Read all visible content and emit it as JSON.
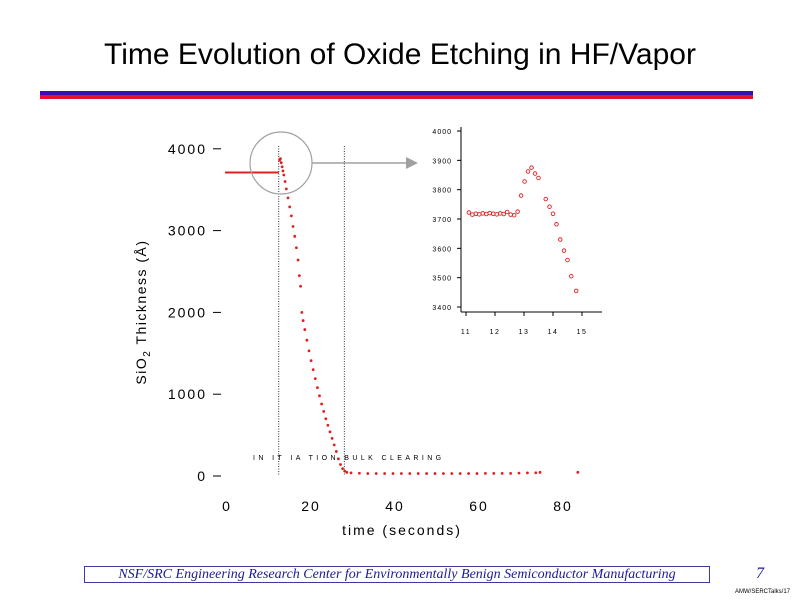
{
  "slide": {
    "title": "Time Evolution of Oxide Etching in HF/Vapor",
    "footer": "NSF/SRC Engineering Research Center for Environmentally Benign Semiconductor Manufacturing",
    "page_number": "7",
    "doc_id": "AMW/SERCTalks/17",
    "colors": {
      "rule_top": "#3a0cb8",
      "rule_bottom": "#e8102a",
      "data": "#e02020",
      "footer_text": "#1a1a9a"
    }
  },
  "chart_data": [
    {
      "type": "scatter",
      "title": "",
      "xlabel": "time (seconds)",
      "ylabel_main": "SiO",
      "ylabel_sub": "2",
      "ylabel_rest": " Thickness (Å)",
      "xlim": [
        0,
        85
      ],
      "ylim": [
        0,
        4200
      ],
      "x_ticks": [
        "0",
        "20",
        "40",
        "60",
        "80"
      ],
      "x_tick_values": [
        0,
        20,
        40,
        60,
        80
      ],
      "y_ticks": [
        "0",
        "1000",
        "2000",
        "3000",
        "4000"
      ],
      "y_tick_values": [
        0,
        1000,
        2000,
        3000,
        4000
      ],
      "grid": false,
      "marker_lines_x": [
        12.8,
        28.4
      ],
      "annotation": "IN IT IA TION   BULK    CLEARING",
      "initial_thickness": {
        "x_start": 0,
        "x_end": 12.8,
        "value": 3710
      },
      "series": [
        {
          "points": [
            [
              13.0,
              3860
            ],
            [
              13.2,
              3880
            ],
            [
              13.4,
              3830
            ],
            [
              13.6,
              3780
            ],
            [
              13.8,
              3730
            ],
            [
              14.0,
              3680
            ],
            [
              14.3,
              3600
            ],
            [
              14.6,
              3510
            ],
            [
              15.0,
              3400
            ],
            [
              15.4,
              3290
            ],
            [
              15.8,
              3180
            ],
            [
              16.2,
              3050
            ],
            [
              16.6,
              2930
            ],
            [
              17.0,
              2790
            ],
            [
              17.4,
              2640
            ],
            [
              17.7,
              2450
            ],
            [
              18.0,
              2320
            ],
            [
              18.3,
              2000
            ],
            [
              18.6,
              1900
            ],
            [
              19.0,
              1790
            ],
            [
              19.5,
              1660
            ],
            [
              20.0,
              1530
            ],
            [
              20.5,
              1410
            ],
            [
              21.0,
              1300
            ],
            [
              21.5,
              1190
            ],
            [
              22.0,
              1080
            ],
            [
              22.5,
              980
            ],
            [
              23.0,
              880
            ],
            [
              23.5,
              790
            ],
            [
              24.0,
              700
            ],
            [
              24.5,
              620
            ],
            [
              25.0,
              540
            ],
            [
              25.5,
              460
            ],
            [
              26.0,
              380
            ],
            [
              26.5,
              300
            ],
            [
              27.0,
              210
            ],
            [
              27.5,
              140
            ],
            [
              28.0,
              90
            ],
            [
              28.5,
              60
            ],
            [
              29.0,
              45
            ],
            [
              30,
              38
            ],
            [
              32,
              34
            ],
            [
              34,
              30
            ],
            [
              36,
              30
            ],
            [
              38,
              30
            ],
            [
              40,
              30
            ],
            [
              42,
              30
            ],
            [
              44,
              30
            ],
            [
              46,
              30
            ],
            [
              48,
              30
            ],
            [
              50,
              30
            ],
            [
              52,
              30
            ],
            [
              54,
              30
            ],
            [
              56,
              30
            ],
            [
              58,
              30
            ],
            [
              60,
              30
            ],
            [
              62,
              32
            ],
            [
              64,
              32
            ],
            [
              66,
              32
            ],
            [
              68,
              32
            ],
            [
              70,
              35
            ],
            [
              72,
              38
            ],
            [
              74,
              40
            ],
            [
              75,
              45
            ],
            [
              84,
              45
            ]
          ]
        }
      ]
    },
    {
      "type": "scatter",
      "title": "",
      "xlim": [
        10.8,
        15.8
      ],
      "ylim": [
        3390,
        4010
      ],
      "x_ticks": [
        "11",
        "12",
        "13",
        "14",
        "15"
      ],
      "x_tick_values": [
        11,
        12,
        13,
        14,
        15
      ],
      "y_ticks": [
        "3400",
        "3500",
        "3600",
        "3700",
        "3800",
        "3900",
        "4000"
      ],
      "y_tick_values": [
        3400,
        3500,
        3600,
        3700,
        3800,
        3900,
        4000
      ],
      "grid": false,
      "series": [
        {
          "points": [
            [
              11.1,
              3722
            ],
            [
              11.22,
              3715
            ],
            [
              11.34,
              3718
            ],
            [
              11.46,
              3716
            ],
            [
              11.58,
              3719
            ],
            [
              11.7,
              3717
            ],
            [
              11.82,
              3720
            ],
            [
              11.94,
              3718
            ],
            [
              12.06,
              3716
            ],
            [
              12.18,
              3719
            ],
            [
              12.3,
              3717
            ],
            [
              12.42,
              3724
            ],
            [
              12.54,
              3715
            ],
            [
              12.66,
              3713
            ],
            [
              12.78,
              3725
            ],
            [
              12.9,
              3780
            ],
            [
              13.02,
              3828
            ],
            [
              13.14,
              3862
            ],
            [
              13.26,
              3875
            ],
            [
              13.38,
              3855
            ],
            [
              13.5,
              3840
            ],
            [
              13.75,
              3768
            ],
            [
              13.88,
              3742
            ],
            [
              14.0,
              3718
            ],
            [
              14.12,
              3682
            ],
            [
              14.25,
              3630
            ],
            [
              14.38,
              3592
            ],
            [
              14.5,
              3560
            ],
            [
              14.63,
              3505
            ],
            [
              14.8,
              3455
            ]
          ]
        }
      ]
    }
  ]
}
